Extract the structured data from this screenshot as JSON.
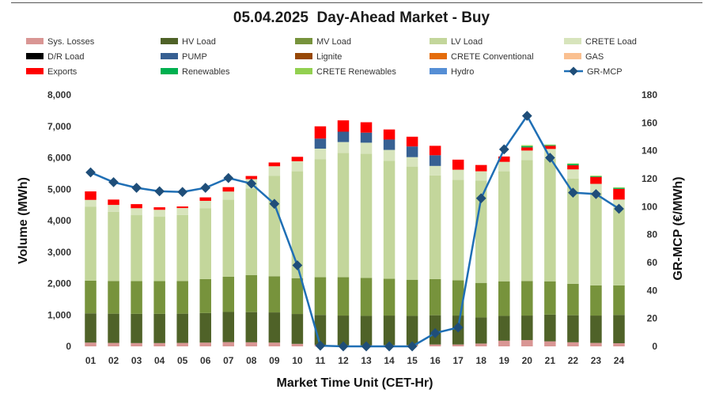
{
  "chart_data": {
    "type": "bar",
    "title": "05.04.2025  Day-Ahead Market - Buy",
    "xlabel": "Market Time Unit (CET-Hr)",
    "ylabel": "Volume (MWh)",
    "y2label": "GR-MCP (€/MWh)",
    "ylim": [
      0,
      8000
    ],
    "y2lim": [
      0,
      180
    ],
    "yticks": [
      "0",
      "1,000",
      "2,000",
      "3,000",
      "4,000",
      "5,000",
      "6,000",
      "7,000",
      "8,000"
    ],
    "y2ticks": [
      "0",
      "20",
      "40",
      "60",
      "80",
      "100",
      "120",
      "140",
      "160",
      "180"
    ],
    "categories": [
      "01",
      "02",
      "03",
      "04",
      "05",
      "06",
      "07",
      "08",
      "09",
      "10",
      "11",
      "12",
      "13",
      "14",
      "15",
      "16",
      "17",
      "18",
      "19",
      "20",
      "21",
      "22",
      "23",
      "24"
    ],
    "series": [
      {
        "name": "Sys. Losses",
        "color": "#d99694",
        "values": [
          120,
          110,
          105,
          105,
          110,
          120,
          135,
          130,
          120,
          80,
          50,
          30,
          30,
          40,
          40,
          60,
          60,
          90,
          180,
          200,
          160,
          130,
          110,
          100
        ]
      },
      {
        "name": "HV Load",
        "color": "#4f6228",
        "values": [
          930,
          930,
          930,
          930,
          930,
          940,
          960,
          960,
          960,
          950,
          950,
          950,
          940,
          940,
          930,
          930,
          920,
          830,
          790,
          780,
          850,
          860,
          870,
          900
        ]
      },
      {
        "name": "MV Load",
        "color": "#77933c",
        "values": [
          1040,
          1040,
          1040,
          1040,
          1040,
          1080,
          1120,
          1180,
          1150,
          1140,
          1200,
          1220,
          1210,
          1170,
          1150,
          1150,
          1120,
          1100,
          1100,
          1100,
          1060,
          1000,
          960,
          940
        ]
      },
      {
        "name": "LV Load",
        "color": "#c3d69b",
        "values": [
          2350,
          2200,
          2100,
          2050,
          2100,
          2250,
          2450,
          2750,
          3200,
          3400,
          3750,
          3950,
          3950,
          3750,
          3600,
          3300,
          3200,
          3250,
          3500,
          3850,
          3900,
          3350,
          2950,
          2450
        ]
      },
      {
        "name": "CRETE Load",
        "color": "#d7e4bc",
        "values": [
          220,
          220,
          220,
          220,
          220,
          240,
          260,
          300,
          300,
          320,
          340,
          350,
          350,
          350,
          300,
          300,
          320,
          300,
          300,
          300,
          310,
          290,
          280,
          280
        ]
      },
      {
        "name": "D/R Load",
        "color": "#000000",
        "values": [
          0,
          0,
          0,
          0,
          0,
          0,
          0,
          0,
          0,
          0,
          0,
          0,
          0,
          0,
          0,
          0,
          0,
          0,
          0,
          0,
          0,
          0,
          0,
          0
        ]
      },
      {
        "name": "PUMP",
        "color": "#376092",
        "values": [
          0,
          0,
          0,
          0,
          0,
          0,
          0,
          0,
          0,
          0,
          320,
          330,
          320,
          330,
          340,
          340,
          0,
          0,
          0,
          0,
          0,
          0,
          0,
          0
        ]
      },
      {
        "name": "Lignite",
        "color": "#974806",
        "values": [
          0,
          0,
          0,
          0,
          0,
          0,
          0,
          0,
          0,
          0,
          0,
          0,
          0,
          0,
          0,
          0,
          0,
          0,
          0,
          0,
          0,
          0,
          0,
          0
        ]
      },
      {
        "name": "CRETE Conventional",
        "color": "#e46c0a",
        "values": [
          0,
          0,
          0,
          0,
          0,
          0,
          0,
          0,
          0,
          0,
          0,
          0,
          0,
          0,
          0,
          0,
          0,
          0,
          0,
          0,
          0,
          0,
          0,
          0
        ]
      },
      {
        "name": "GAS",
        "color": "#fac090",
        "values": [
          0,
          0,
          0,
          0,
          0,
          0,
          0,
          0,
          0,
          0,
          0,
          0,
          0,
          0,
          0,
          0,
          0,
          0,
          0,
          0,
          0,
          0,
          0,
          0
        ]
      },
      {
        "name": "Exports",
        "color": "#ff0000",
        "values": [
          270,
          170,
          130,
          80,
          50,
          110,
          140,
          100,
          120,
          140,
          390,
          360,
          330,
          320,
          310,
          300,
          320,
          200,
          170,
          100,
          100,
          130,
          220,
          340
        ]
      },
      {
        "name": "Renewables",
        "color": "#00b050",
        "values": [
          0,
          0,
          0,
          0,
          0,
          0,
          0,
          0,
          0,
          0,
          0,
          0,
          0,
          0,
          0,
          0,
          0,
          0,
          0,
          40,
          20,
          40,
          20,
          30
        ]
      },
      {
        "name": "CRETE Renewables",
        "color": "#92d050",
        "values": [
          0,
          0,
          0,
          0,
          0,
          0,
          0,
          0,
          0,
          0,
          0,
          0,
          0,
          0,
          0,
          0,
          0,
          0,
          0,
          30,
          20,
          20,
          20,
          20
        ]
      },
      {
        "name": "Hydro",
        "color": "#558ed5",
        "values": [
          0,
          0,
          0,
          0,
          0,
          0,
          0,
          0,
          0,
          0,
          0,
          0,
          0,
          0,
          0,
          0,
          0,
          0,
          0,
          0,
          0,
          0,
          0,
          0
        ]
      }
    ],
    "line": {
      "name": "GR-MCP",
      "color": "#1f6fb5",
      "marker_color": "#1f4e79",
      "axis": "right",
      "values": [
        124.5,
        117.5,
        113.5,
        111,
        110.5,
        113.5,
        120.5,
        116.5,
        102,
        58,
        0.5,
        0,
        0,
        0,
        0,
        9.5,
        13.5,
        106,
        141,
        165,
        135,
        110,
        109,
        98.5
      ]
    },
    "legend_position": "top"
  }
}
